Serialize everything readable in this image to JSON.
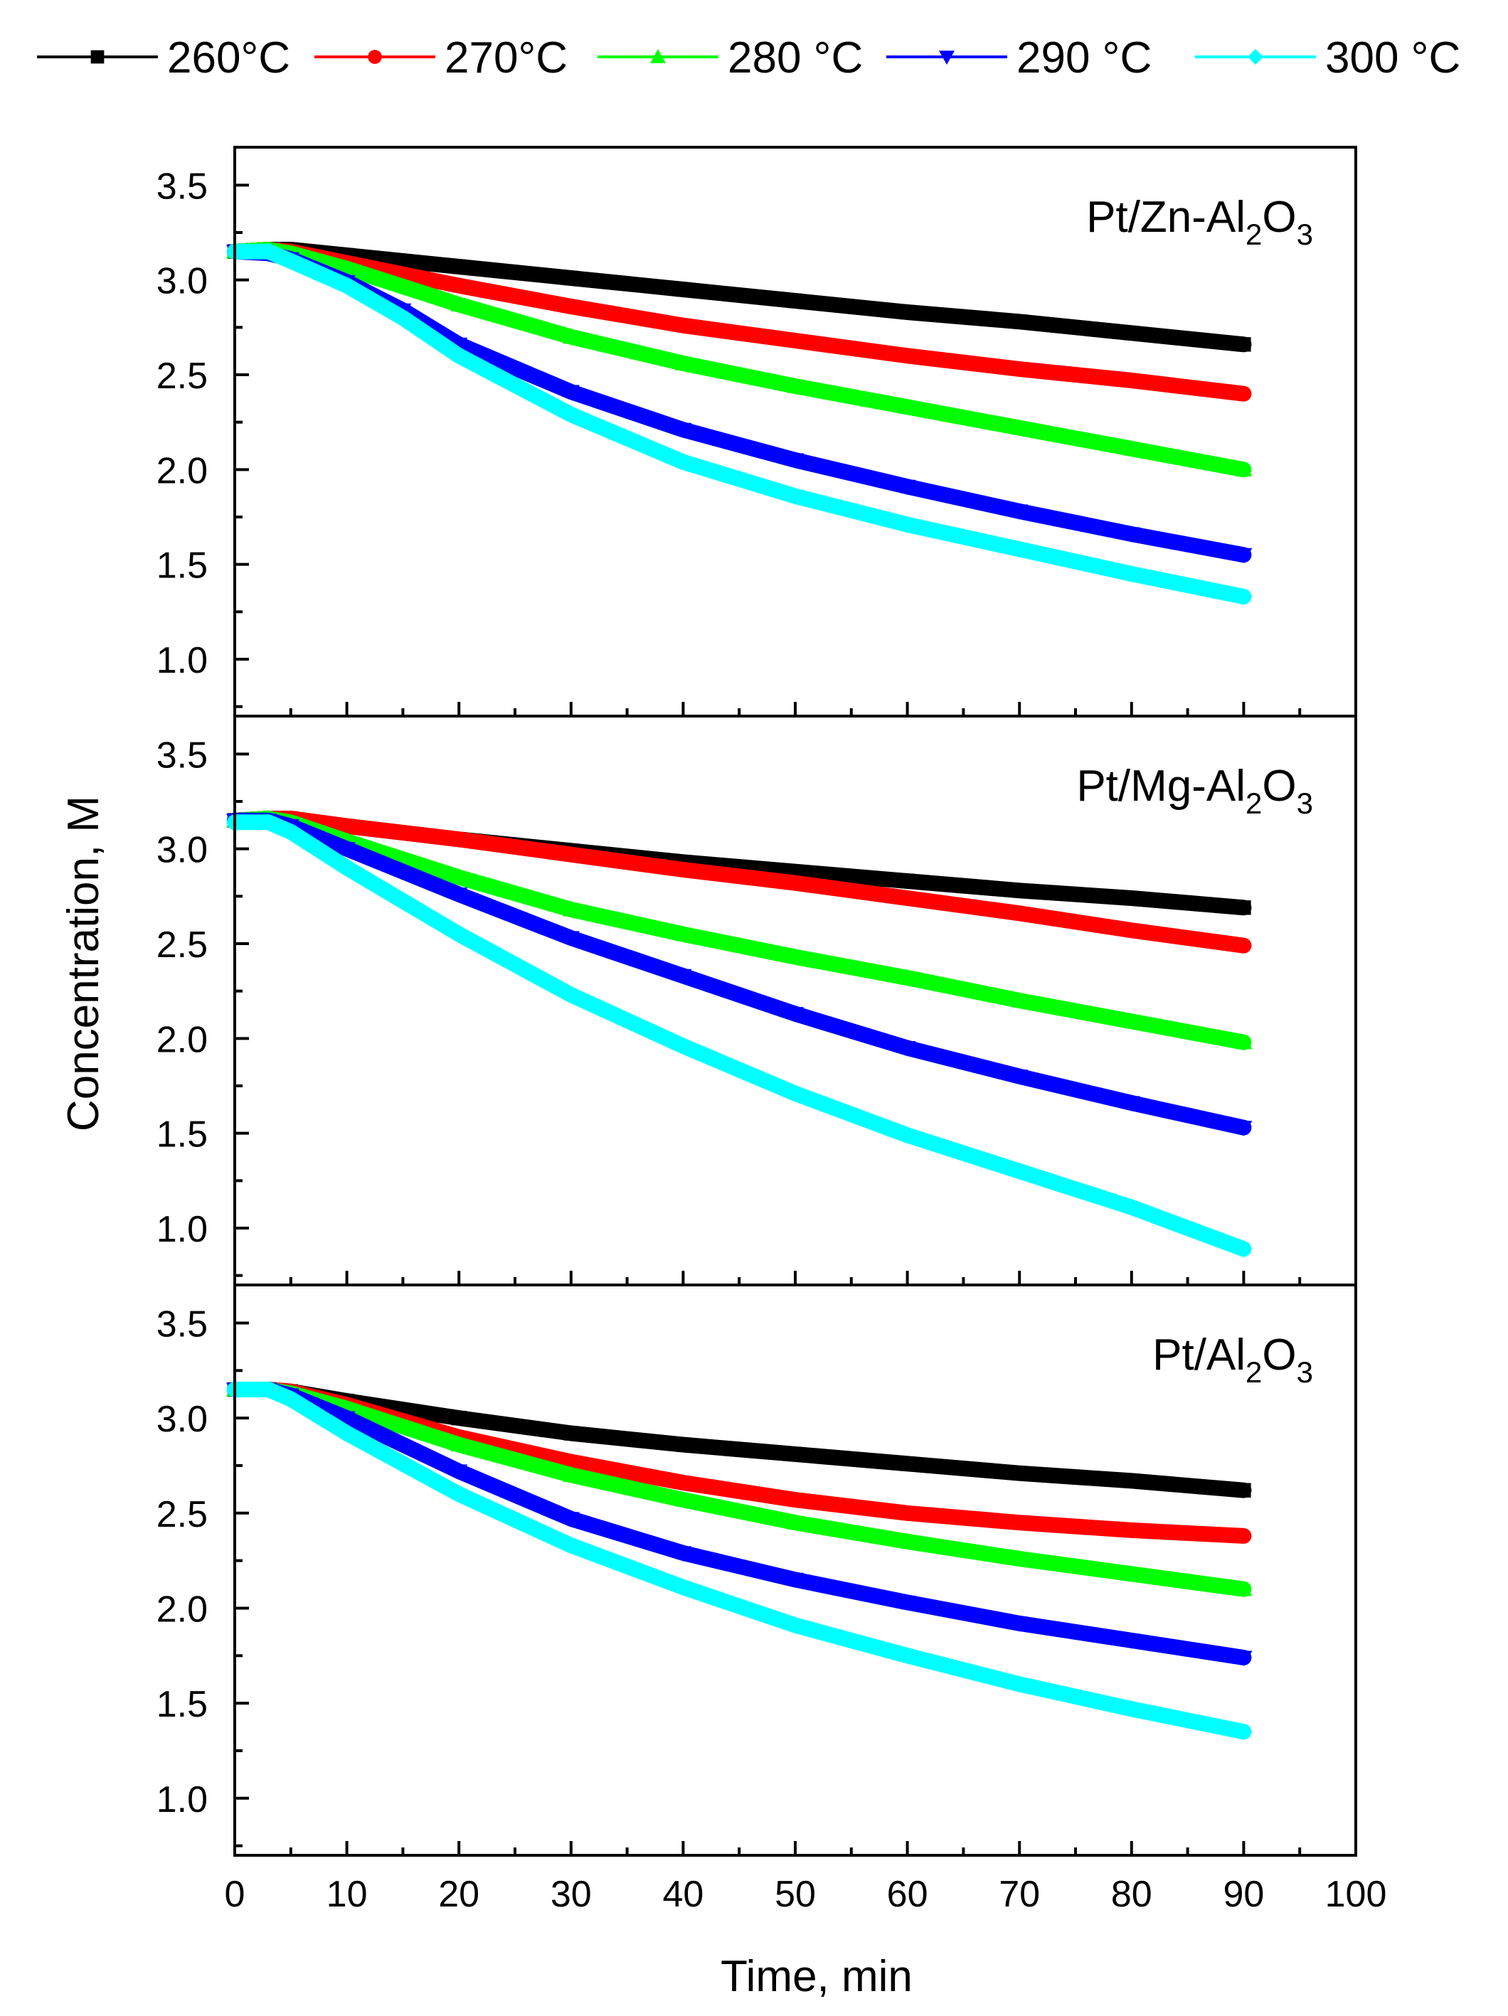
{
  "chart_data": {
    "type": "line",
    "x_axis": {
      "label": "Time, min",
      "range": [
        0,
        100
      ],
      "ticks": [
        0,
        10,
        20,
        30,
        40,
        50,
        60,
        70,
        80,
        90,
        100
      ],
      "tick_labels": [
        "0",
        "10",
        "20",
        "30",
        "40",
        "50",
        "60",
        "70",
        "80",
        "90",
        "100"
      ]
    },
    "y_axis": {
      "label": "Concentration, M",
      "range": [
        0.7,
        3.7
      ],
      "ticks": [
        1.0,
        1.5,
        2.0,
        2.5,
        3.0,
        3.5
      ],
      "tick_labels": [
        "1.0",
        "1.5",
        "2.0",
        "2.5",
        "3.0",
        "3.5"
      ]
    },
    "grid": false,
    "legend": {
      "placement": "top",
      "items": [
        {
          "label": "260°C",
          "color": "#000000",
          "marker": "square"
        },
        {
          "label": "270°C",
          "color": "#ff0000",
          "marker": "circle"
        },
        {
          "label": "280 °C",
          "color": "#00ff00",
          "marker": "triangle-up"
        },
        {
          "label": "290 °C",
          "color": "#0000ff",
          "marker": "triangle-down"
        },
        {
          "label": "300 °C",
          "color": "#00ffff",
          "marker": "diamond"
        }
      ]
    },
    "panels": [
      {
        "label_parts": [
          [
            "Pt/Zn-Al",
            "normal"
          ],
          [
            "2",
            "sub"
          ],
          [
            "O",
            "normal"
          ],
          [
            "3",
            "sub"
          ]
        ],
        "series": [
          {
            "name": "260°C",
            "x": [
              0,
              3,
              5,
              10,
              20,
              30,
              40,
              50,
              60,
              70,
              80,
              90
            ],
            "y": [
              3.15,
              3.16,
              3.16,
              3.13,
              3.07,
              3.01,
              2.95,
              2.89,
              2.83,
              2.78,
              2.72,
              2.66
            ]
          },
          {
            "name": "270°C",
            "x": [
              0,
              3,
              5,
              10,
              20,
              30,
              40,
              50,
              60,
              70,
              80,
              90
            ],
            "y": [
              3.15,
              3.16,
              3.15,
              3.09,
              2.97,
              2.86,
              2.76,
              2.68,
              2.6,
              2.53,
              2.47,
              2.4
            ]
          },
          {
            "name": "280 °C",
            "x": [
              0,
              3,
              5,
              10,
              20,
              30,
              40,
              50,
              60,
              70,
              80,
              90
            ],
            "y": [
              3.15,
              3.16,
              3.14,
              3.06,
              2.87,
              2.7,
              2.56,
              2.44,
              2.33,
              2.22,
              2.11,
              2.0
            ]
          },
          {
            "name": "290 °C",
            "x": [
              0,
              3,
              5,
              10,
              15,
              20,
              30,
              40,
              50,
              60,
              70,
              80,
              90
            ],
            "y": [
              3.15,
              3.14,
              3.11,
              2.99,
              2.84,
              2.66,
              2.41,
              2.21,
              2.05,
              1.91,
              1.78,
              1.66,
              1.55
            ]
          },
          {
            "name": "300 °C",
            "x": [
              0,
              3,
              5,
              10,
              15,
              20,
              30,
              40,
              50,
              60,
              70,
              80,
              90
            ],
            "y": [
              3.15,
              3.15,
              3.1,
              2.97,
              2.8,
              2.6,
              2.29,
              2.04,
              1.86,
              1.71,
              1.58,
              1.45,
              1.33
            ]
          }
        ]
      },
      {
        "label_parts": [
          [
            "Pt/Mg-Al",
            "normal"
          ],
          [
            "2",
            "sub"
          ],
          [
            "O",
            "normal"
          ],
          [
            "3",
            "sub"
          ]
        ],
        "series": [
          {
            "name": "260°C",
            "x": [
              0,
              3,
              5,
              10,
              20,
              30,
              40,
              50,
              60,
              70,
              80,
              90
            ],
            "y": [
              3.15,
              3.16,
              3.16,
              3.12,
              3.05,
              2.99,
              2.93,
              2.88,
              2.83,
              2.78,
              2.74,
              2.69
            ]
          },
          {
            "name": "270°C",
            "x": [
              0,
              3,
              5,
              10,
              20,
              30,
              40,
              50,
              60,
              70,
              80,
              90
            ],
            "y": [
              3.15,
              3.16,
              3.16,
              3.12,
              3.05,
              2.97,
              2.89,
              2.82,
              2.74,
              2.66,
              2.57,
              2.49
            ]
          },
          {
            "name": "280 °C",
            "x": [
              0,
              3,
              5,
              10,
              20,
              30,
              40,
              50,
              60,
              70,
              80,
              90
            ],
            "y": [
              3.15,
              3.16,
              3.14,
              3.04,
              2.85,
              2.68,
              2.55,
              2.43,
              2.32,
              2.2,
              2.09,
              1.98
            ]
          },
          {
            "name": "290 °C",
            "x": [
              0,
              3,
              5,
              10,
              20,
              30,
              40,
              50,
              60,
              70,
              80,
              90
            ],
            "y": [
              3.15,
              3.15,
              3.12,
              3.0,
              2.76,
              2.53,
              2.33,
              2.13,
              1.95,
              1.8,
              1.66,
              1.53
            ]
          },
          {
            "name": "300 °C",
            "x": [
              0,
              3,
              5,
              10,
              20,
              30,
              40,
              50,
              60,
              70,
              80,
              90
            ],
            "y": [
              3.14,
              3.14,
              3.09,
              2.9,
              2.55,
              2.23,
              1.96,
              1.71,
              1.49,
              1.3,
              1.11,
              0.89
            ]
          }
        ]
      },
      {
        "label_parts": [
          [
            "Pt/Al",
            "normal"
          ],
          [
            "2",
            "sub"
          ],
          [
            "O",
            "normal"
          ],
          [
            "3",
            "sub"
          ]
        ],
        "series": [
          {
            "name": "260°C",
            "x": [
              0,
              3,
              5,
              10,
              20,
              30,
              40,
              50,
              60,
              70,
              80,
              90
            ],
            "y": [
              3.15,
              3.15,
              3.14,
              3.09,
              3.0,
              2.92,
              2.86,
              2.81,
              2.76,
              2.71,
              2.67,
              2.62
            ]
          },
          {
            "name": "270°C",
            "x": [
              0,
              3,
              5,
              10,
              20,
              30,
              40,
              50,
              60,
              70,
              80,
              90
            ],
            "y": [
              3.15,
              3.15,
              3.14,
              3.07,
              2.9,
              2.77,
              2.66,
              2.57,
              2.5,
              2.45,
              2.41,
              2.38
            ]
          },
          {
            "name": "280 °C",
            "x": [
              0,
              3,
              5,
              10,
              20,
              30,
              40,
              50,
              60,
              70,
              80,
              90
            ],
            "y": [
              3.15,
              3.15,
              3.13,
              3.05,
              2.86,
              2.7,
              2.57,
              2.45,
              2.35,
              2.26,
              2.18,
              2.1
            ]
          },
          {
            "name": "290 °C",
            "x": [
              0,
              3,
              5,
              10,
              20,
              30,
              40,
              50,
              60,
              70,
              80,
              90
            ],
            "y": [
              3.15,
              3.15,
              3.12,
              3.0,
              2.72,
              2.47,
              2.29,
              2.15,
              2.03,
              1.92,
              1.83,
              1.74
            ]
          },
          {
            "name": "300 °C",
            "x": [
              0,
              3,
              5,
              10,
              20,
              30,
              40,
              50,
              60,
              70,
              80,
              90
            ],
            "y": [
              3.15,
              3.15,
              3.1,
              2.92,
              2.6,
              2.33,
              2.11,
              1.91,
              1.75,
              1.6,
              1.47,
              1.35
            ]
          }
        ]
      }
    ]
  }
}
